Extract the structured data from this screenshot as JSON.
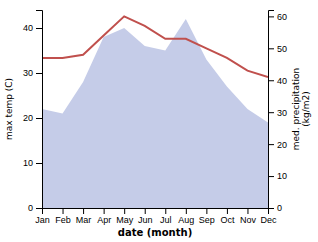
{
  "chart_data": {
    "type": "area",
    "categories": [
      "Jan",
      "Feb",
      "Mar",
      "Apr",
      "May",
      "Jun",
      "Jul",
      "Aug",
      "Sep",
      "Oct",
      "Nov",
      "Dec"
    ],
    "xlabel": "date (month)",
    "ylabel": "max temp (C)",
    "y2label": "med. precipitation\n(kg/m2)",
    "ylim": [
      0,
      44
    ],
    "yticks": [
      0,
      10,
      20,
      30,
      40
    ],
    "y2lim": [
      0,
      62
    ],
    "y2ticks": [
      0,
      10,
      20,
      30,
      40,
      50,
      60
    ],
    "series": [
      {
        "type": "area",
        "color": "#c5cce8",
        "values": [
          22,
          21,
          28,
          38,
          40,
          36,
          35,
          42,
          33,
          27,
          22,
          19
        ]
      },
      {
        "type": "line",
        "color": "#c0504d",
        "axis": "y2",
        "values": [
          47,
          47,
          48,
          54,
          60,
          57,
          53,
          53,
          50,
          47,
          43,
          41
        ]
      }
    ]
  }
}
